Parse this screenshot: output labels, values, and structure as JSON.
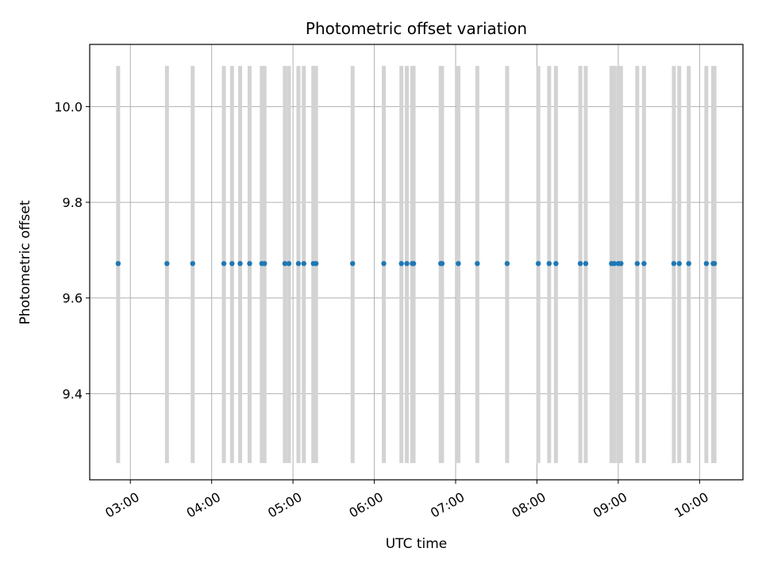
{
  "chart_data": {
    "type": "scatter",
    "title": "Photometric offset variation",
    "xlabel": "UTC time",
    "ylabel": "Photometric offset",
    "x_ticks": [
      "03:00",
      "04:00",
      "05:00",
      "06:00",
      "07:00",
      "08:00",
      "09:00",
      "10:00"
    ],
    "y_ticks": [
      "9.4",
      "9.6",
      "9.8",
      "10.0"
    ],
    "xlim": [
      "02:30",
      "10:32"
    ],
    "ylim": [
      9.22,
      10.13
    ],
    "grid": true,
    "band_range": [
      9.255,
      10.085
    ],
    "colors": {
      "points": "#1f77b4",
      "bands": "#d3d3d3",
      "grid": "#b0b0b0"
    },
    "series": [
      {
        "x": [
          "02:51",
          "03:27",
          "03:46",
          "04:09",
          "04:15",
          "04:21",
          "04:28",
          "04:37",
          "04:39",
          "04:54",
          "04:57",
          "05:04",
          "05:08",
          "05:15",
          "05:17",
          "05:44",
          "06:07",
          "06:20",
          "06:24",
          "06:28",
          "06:29",
          "06:49",
          "06:50",
          "07:02",
          "07:16",
          "07:38",
          "08:01",
          "08:09",
          "08:14",
          "08:32",
          "08:36",
          "08:55",
          "08:57",
          "09:00",
          "09:02",
          "09:14",
          "09:19",
          "09:41",
          "09:45",
          "09:52",
          "10:05",
          "10:10",
          "10:11"
        ],
        "y": [
          9.672,
          9.672,
          9.672,
          9.672,
          9.672,
          9.672,
          9.672,
          9.672,
          9.672,
          9.672,
          9.672,
          9.672,
          9.672,
          9.672,
          9.672,
          9.672,
          9.672,
          9.672,
          9.672,
          9.672,
          9.672,
          9.672,
          9.672,
          9.672,
          9.672,
          9.672,
          9.672,
          9.672,
          9.672,
          9.672,
          9.672,
          9.672,
          9.672,
          9.672,
          9.672,
          9.672,
          9.672,
          9.672,
          9.672,
          9.672,
          9.672,
          9.672,
          9.672
        ]
      }
    ]
  }
}
